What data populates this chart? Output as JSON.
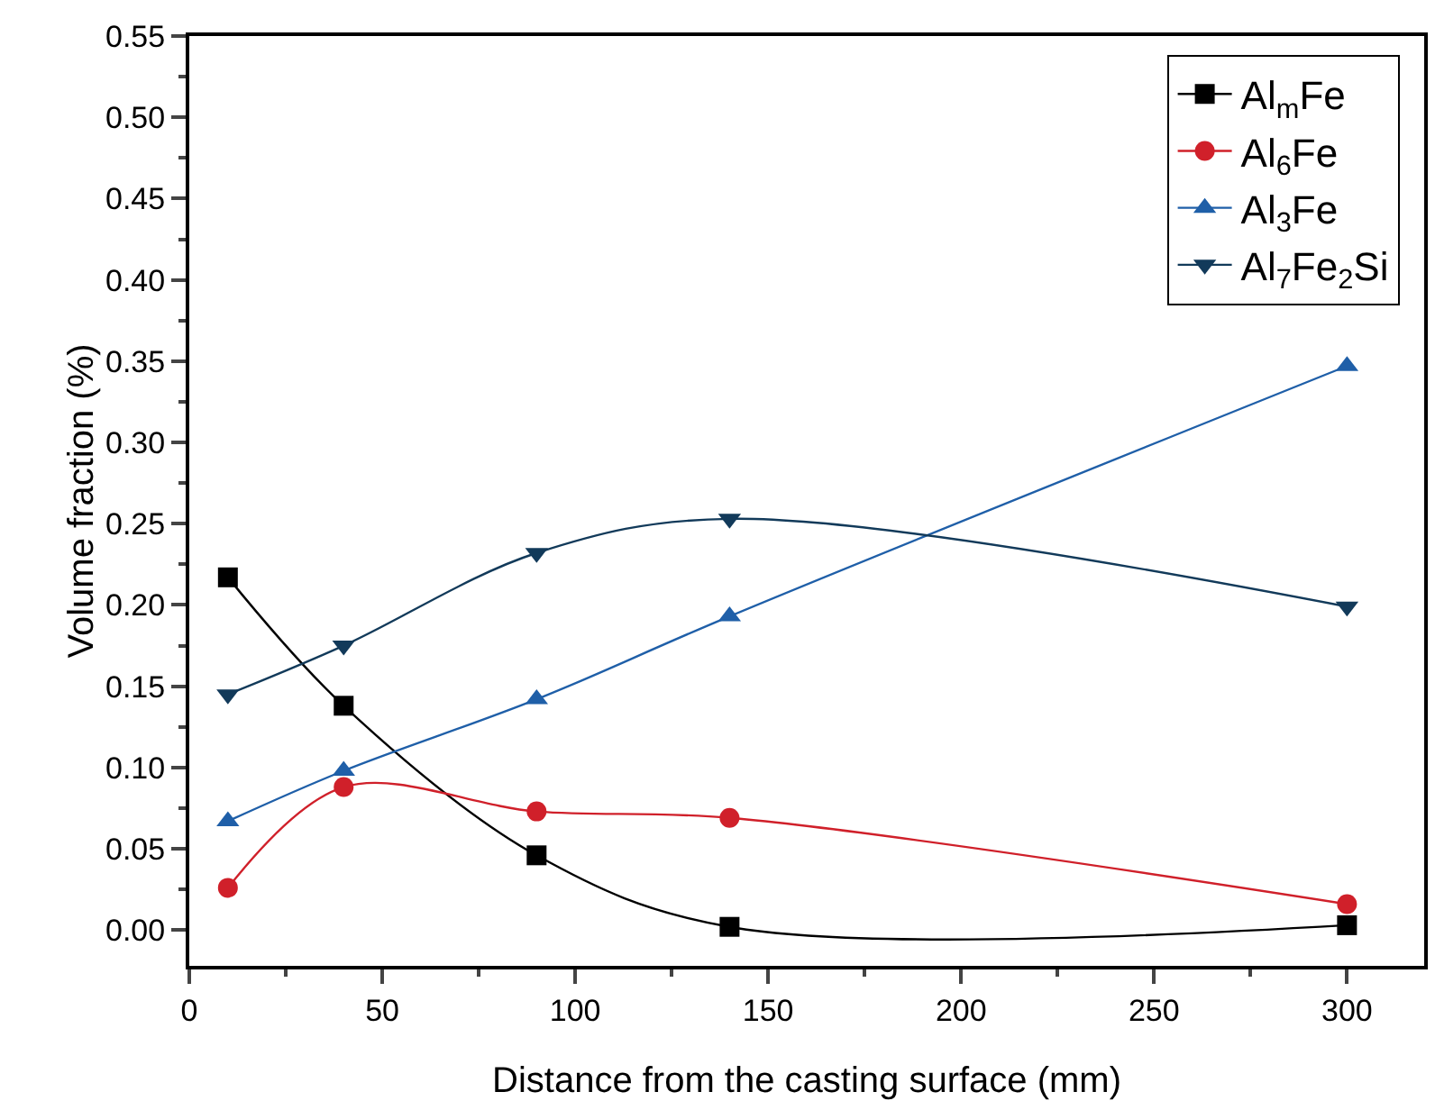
{
  "chart_data": {
    "type": "line",
    "xlabel": "Distance from the casting surface (mm)",
    "ylabel": "Volume fraction (%)",
    "x": [
      10,
      40,
      90,
      140,
      300
    ],
    "series": [
      {
        "name": "Al$_{m}$Fe",
        "color": "#000000",
        "marker": "square",
        "values": [
          0.217,
          0.138,
          0.046,
          0.002,
          0.003
        ]
      },
      {
        "name": "Al$_{6}$Fe",
        "color": "#d0202a",
        "marker": "circle",
        "values": [
          0.026,
          0.088,
          0.073,
          0.069,
          0.016
        ]
      },
      {
        "name": "Al$_{3}$Fe",
        "color": "#1f5fa8",
        "marker": "triangle",
        "values": [
          0.067,
          0.098,
          0.142,
          0.193,
          0.347
        ]
      },
      {
        "name": "Al$_{7}$Fe$_{2}$Si",
        "color": "#123a5a",
        "marker": "triangle-down",
        "values": [
          0.145,
          0.175,
          0.232,
          0.253,
          0.199
        ]
      }
    ],
    "xlim": [
      0,
      320
    ],
    "xticks": [
      0,
      50,
      100,
      150,
      200,
      250,
      300
    ],
    "ylim": [
      -0.022,
      0.55
    ],
    "yticks": [
      {
        "value": 0,
        "label": "0.00"
      },
      {
        "value": 0.05,
        "label": "0.05"
      },
      {
        "value": 0.1,
        "label": "0.10"
      },
      {
        "value": 0.15,
        "label": "0.15"
      },
      {
        "value": 0.2,
        "label": "0.20"
      },
      {
        "value": 0.25,
        "label": "0.25"
      },
      {
        "value": 0.3,
        "label": "0.30"
      },
      {
        "value": 0.35,
        "label": "0.35"
      },
      {
        "value": 0.4,
        "label": "0.40"
      },
      {
        "value": 0.45,
        "label": "0.45"
      },
      {
        "value": 0.5,
        "label": "0.50"
      },
      {
        "value": 0.55,
        "label": "0.55"
      }
    ],
    "grid": false,
    "legend": "top right",
    "line_style": "solid"
  }
}
